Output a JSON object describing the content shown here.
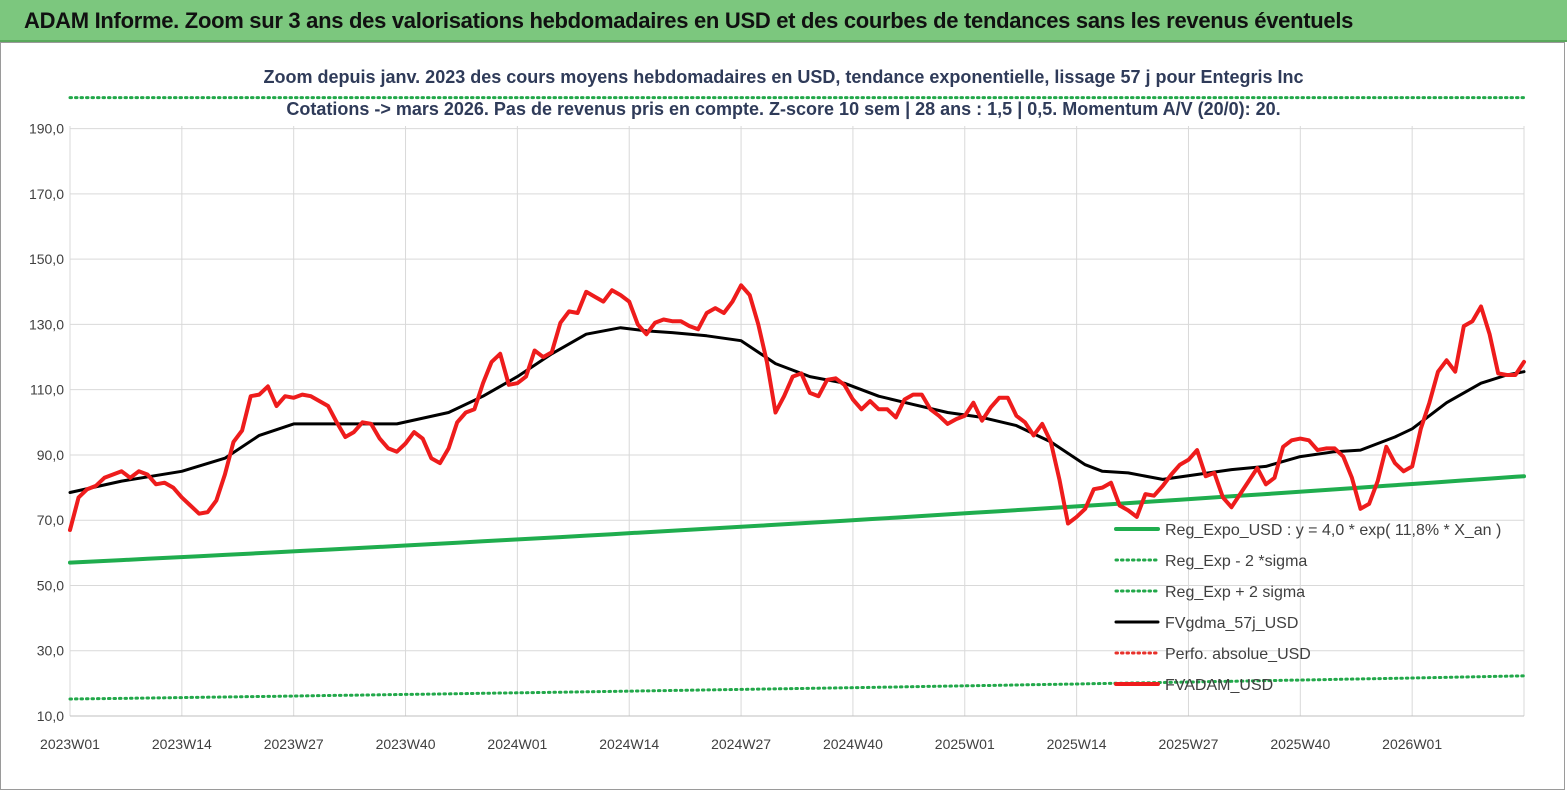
{
  "header": {
    "title": "ADAM Informe. Zoom sur 3 ans des valorisations hebdomadaires en USD et des courbes de tendances sans les revenus éventuels"
  },
  "colors": {
    "header_bg": "#7cc77e",
    "reg_expo": "#1fad4e",
    "reg_band": "#22a84a",
    "fvgdma": "#000000",
    "perfo": "#e8302a",
    "fvadam": "#ee1c1c",
    "subtitle": "#2f3b59"
  },
  "chart_data": {
    "type": "line",
    "title": "Zoom depuis janv. 2023 des cours moyens hebdomadaires en USD, tendance exponentielle, lissage 57 j pour Entegris Inc",
    "subtitle": "Cotations -> mars 2026. Pas de revenus pris en compte. Z-score 10 sem | 28 ans : 1,5 | 0,5. Momentum A/V (20/0): 20.",
    "xlabel": "",
    "ylabel": "",
    "ylim": [
      10,
      200
    ],
    "yticks": [
      "10,0",
      "30,0",
      "50,0",
      "70,0",
      "90,0",
      "110,0",
      "130,0",
      "150,0",
      "170,0",
      "190,0"
    ],
    "ytick_values": [
      10,
      30,
      50,
      70,
      90,
      110,
      130,
      150,
      170,
      190
    ],
    "xticks": [
      "2023W01",
      "2023W14",
      "2023W27",
      "2023W40",
      "2024W01",
      "2024W14",
      "2024W27",
      "2024W40",
      "2025W01",
      "2025W14",
      "2025W27",
      "2025W40",
      "2026W01"
    ],
    "week_count": 170,
    "grid": true,
    "legend_position": "bottom-right",
    "series": [
      {
        "name": "Reg_Expo_USD : y = 4,0 * exp( 11,8% *  X_an )",
        "style": "thick-solid",
        "color": "#1fad4e",
        "x": [
          0,
          169
        ],
        "values": [
          57.0,
          83.5
        ]
      },
      {
        "name": "Reg_Exp - 2 *sigma",
        "style": "dotted",
        "color": "#22a84a",
        "x": [
          0,
          169
        ],
        "values": [
          15.2,
          22.3
        ]
      },
      {
        "name": "Reg_Exp + 2 sigma",
        "style": "dotted",
        "color": "#22a84a",
        "x": [
          0,
          169
        ],
        "values": [
          199.5,
          199.5
        ]
      },
      {
        "name": "FVgdma_57j_USD",
        "style": "solid",
        "color": "#000000",
        "x": [
          0,
          6,
          13,
          18,
          22,
          26,
          31,
          38,
          44,
          48,
          52,
          56,
          60,
          64,
          67,
          70,
          74,
          78,
          82,
          86,
          90,
          94,
          98,
          102,
          106,
          110,
          114,
          118,
          120,
          123,
          127,
          131,
          135,
          139,
          143,
          147,
          150,
          154,
          156,
          160,
          164,
          167,
          169
        ],
        "values": [
          78.5,
          82,
          85,
          89,
          96,
          99.5,
          99.5,
          99.5,
          103,
          108,
          114,
          121,
          127,
          129,
          128,
          127.5,
          126.5,
          125,
          118,
          114,
          112,
          108,
          105.5,
          103,
          101.5,
          99,
          94,
          87,
          85,
          84.5,
          82.5,
          84,
          85.5,
          86.5,
          89.5,
          91,
          91.5,
          95.5,
          98,
          106,
          112,
          114.5,
          115.5
        ]
      },
      {
        "name": "Perfo. absolue_USD",
        "style": "dotted",
        "color": "#e8302a",
        "x": [],
        "values": []
      },
      {
        "name": "FVADAM_USD",
        "style": "thick-solid",
        "color": "#ee1c1c",
        "x": [
          0,
          1,
          2,
          3,
          4,
          5,
          6,
          7,
          8,
          9,
          10,
          11,
          12,
          13,
          14,
          15,
          16,
          17,
          18,
          19,
          20,
          21,
          22,
          23,
          24,
          25,
          26,
          27,
          28,
          29,
          30,
          31,
          32,
          33,
          34,
          35,
          36,
          37,
          38,
          39,
          40,
          41,
          42,
          43,
          44,
          45,
          46,
          47,
          48,
          49,
          50,
          51,
          52,
          53,
          54,
          55,
          56,
          57,
          58,
          59,
          60,
          61,
          62,
          63,
          64,
          65,
          66,
          67,
          68,
          69,
          70,
          71,
          72,
          73,
          74,
          75,
          76,
          77,
          78,
          79,
          80,
          81,
          82,
          83,
          84,
          85,
          86,
          87,
          88,
          89,
          90,
          91,
          92,
          93,
          94,
          95,
          96,
          97,
          98,
          99,
          100,
          101,
          102,
          103,
          104,
          105,
          106,
          107,
          108,
          109,
          110,
          111,
          112,
          113,
          114,
          115,
          116,
          117,
          118,
          119,
          120,
          121,
          122,
          123,
          124,
          125,
          126,
          127,
          128,
          129,
          130,
          131,
          132,
          133,
          134,
          135,
          136,
          137,
          138,
          139,
          140,
          141,
          142,
          143,
          144,
          145,
          146,
          147,
          148,
          149,
          150,
          151,
          152,
          153,
          154,
          155,
          156,
          157,
          158,
          159,
          160,
          161,
          162,
          163,
          164,
          165,
          166,
          167,
          168,
          169
        ],
        "values": [
          67,
          77,
          79.5,
          80.5,
          83,
          84,
          85,
          83,
          85,
          84,
          81,
          81.5,
          80,
          77,
          74.5,
          72,
          72.5,
          76,
          84,
          94,
          97.5,
          108,
          108.5,
          111,
          105,
          108,
          107.5,
          108.5,
          108,
          106.5,
          105,
          100,
          95.5,
          97,
          100,
          99.5,
          95,
          92,
          91,
          93.5,
          97,
          95,
          89,
          87.5,
          92,
          100,
          103,
          104,
          112,
          118.5,
          121,
          111.5,
          112,
          114,
          122,
          120,
          121.5,
          130.5,
          134,
          133.5,
          140,
          138.5,
          137,
          140.5,
          139,
          137,
          130,
          127,
          130.5,
          131.5,
          131,
          131,
          129.5,
          128.5,
          133.5,
          135,
          133.5,
          137,
          142,
          139,
          130,
          118.5,
          103,
          108,
          114,
          115,
          109,
          108,
          113,
          113.5,
          111.5,
          107,
          104,
          106.5,
          104,
          104,
          101.5,
          107,
          108.5,
          108.5,
          104,
          102,
          99.5,
          101,
          102,
          106,
          100.5,
          104.5,
          107.5,
          107.5,
          102,
          100,
          96,
          99.5,
          94,
          82.5,
          69,
          71,
          73.5,
          79.5,
          80,
          81.5,
          74.5,
          73,
          71,
          78,
          77.5,
          80.5,
          84,
          87,
          88.5,
          91.5,
          83.5,
          84.5,
          77,
          74,
          78,
          82,
          86,
          81,
          83,
          92.5,
          94.5,
          95,
          94.5,
          91.5,
          92,
          92,
          89.5,
          83,
          73.5,
          75,
          82,
          92.5,
          87.5,
          85,
          86.5,
          98,
          106,
          115.5,
          119,
          115.5,
          129.5,
          131,
          135.5,
          127,
          115,
          114.5,
          114.5,
          118.5
        ]
      }
    ]
  }
}
